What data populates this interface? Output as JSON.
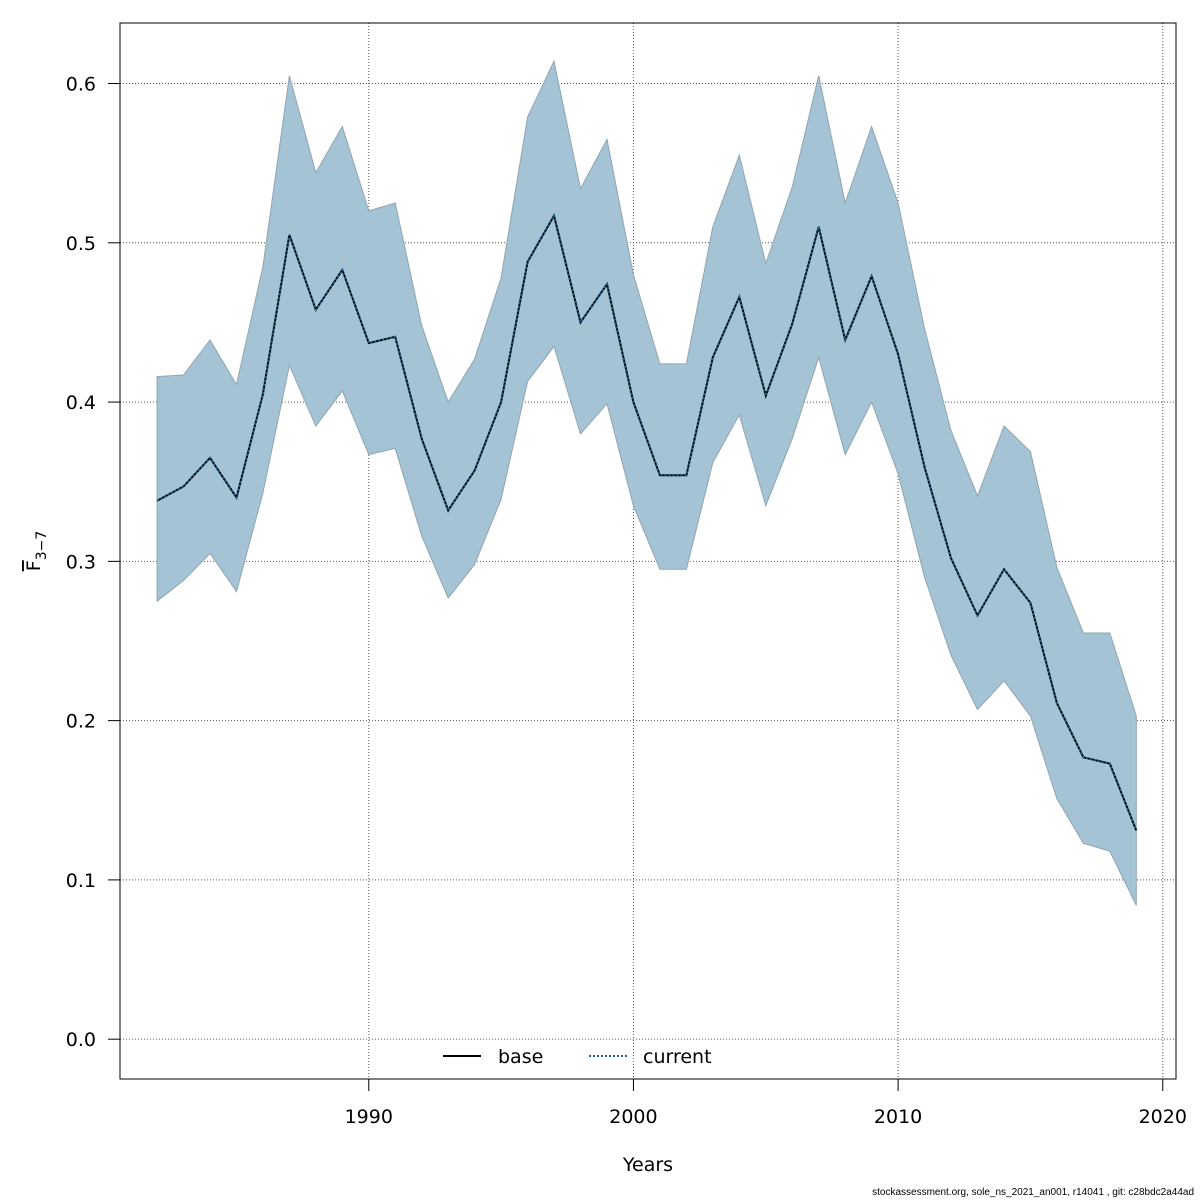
{
  "chart_data": {
    "type": "area",
    "xlabel": "Years",
    "ylabel": "F",
    "ylabel_subscript": "3−7",
    "xlim": [
      1980.6,
      2020.5
    ],
    "ylim": [
      -0.025,
      0.638
    ],
    "x_ticks": [
      "1990",
      "2000",
      "2010",
      "2020"
    ],
    "y_ticks": [
      "0.0",
      "0.1",
      "0.2",
      "0.3",
      "0.4",
      "0.5",
      "0.6"
    ],
    "grid": true,
    "legend_position": "bottom-center",
    "legend": [
      {
        "label": "base",
        "style": "solid",
        "color": "#000000"
      },
      {
        "label": "current",
        "style": "dotted",
        "color": "#1b5f8c"
      }
    ],
    "band_color": "#a4c4d6",
    "x": [
      1982,
      1983,
      1984,
      1985,
      1986,
      1987,
      1988,
      1989,
      1990,
      1991,
      1992,
      1993,
      1994,
      1995,
      1996,
      1997,
      1998,
      1999,
      2000,
      2001,
      2002,
      2003,
      2004,
      2005,
      2006,
      2007,
      2008,
      2009,
      2010,
      2011,
      2012,
      2013,
      2014,
      2015,
      2016,
      2017,
      2018,
      2019
    ],
    "series": [
      {
        "name": "base",
        "values": [
          0.338,
          0.347,
          0.365,
          0.34,
          0.405,
          0.505,
          0.458,
          0.483,
          0.437,
          0.441,
          0.377,
          0.332,
          0.357,
          0.4,
          0.488,
          0.517,
          0.45,
          0.474,
          0.4,
          0.354,
          0.354,
          0.428,
          0.466,
          0.404,
          0.449,
          0.51,
          0.439,
          0.479,
          0.43,
          0.359,
          0.302,
          0.266,
          0.295,
          0.274,
          0.211,
          0.177,
          0.173,
          0.131
        ]
      },
      {
        "name": "current",
        "values": [
          0.338,
          0.347,
          0.365,
          0.34,
          0.405,
          0.505,
          0.458,
          0.483,
          0.437,
          0.441,
          0.377,
          0.332,
          0.357,
          0.4,
          0.488,
          0.517,
          0.45,
          0.474,
          0.4,
          0.354,
          0.354,
          0.428,
          0.466,
          0.404,
          0.449,
          0.51,
          0.439,
          0.479,
          0.43,
          0.359,
          0.302,
          0.266,
          0.295,
          0.274,
          0.211,
          0.177,
          0.173,
          0.131
        ]
      }
    ],
    "band": {
      "upper": [
        0.416,
        0.417,
        0.439,
        0.411,
        0.485,
        0.605,
        0.544,
        0.573,
        0.52,
        0.525,
        0.448,
        0.4,
        0.427,
        0.478,
        0.579,
        0.614,
        0.534,
        0.565,
        0.48,
        0.424,
        0.424,
        0.51,
        0.555,
        0.487,
        0.535,
        0.605,
        0.525,
        0.573,
        0.525,
        0.446,
        0.382,
        0.341,
        0.385,
        0.369,
        0.296,
        0.255,
        0.255,
        0.203
      ],
      "lower": [
        0.275,
        0.288,
        0.305,
        0.281,
        0.343,
        0.423,
        0.385,
        0.407,
        0.367,
        0.371,
        0.316,
        0.277,
        0.298,
        0.339,
        0.413,
        0.435,
        0.38,
        0.399,
        0.335,
        0.295,
        0.295,
        0.362,
        0.392,
        0.335,
        0.377,
        0.428,
        0.367,
        0.4,
        0.355,
        0.29,
        0.241,
        0.207,
        0.225,
        0.203,
        0.151,
        0.123,
        0.118,
        0.084
      ]
    }
  },
  "footer": {
    "text": "stockassessment.org, sole_ns_2021_an001, r14041 , git: c28bdc2a44ad"
  }
}
